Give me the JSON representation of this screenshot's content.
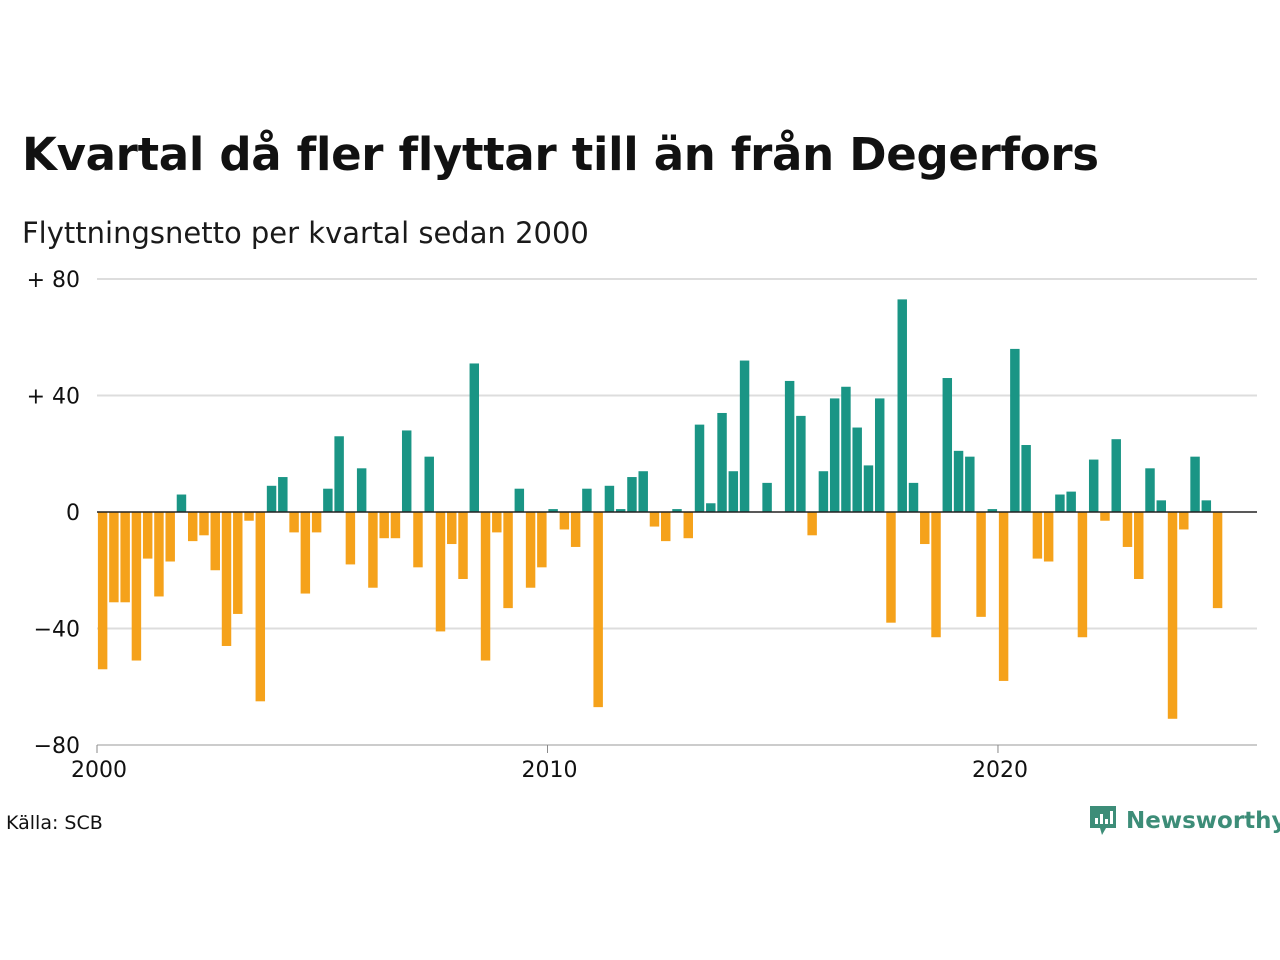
{
  "title": "Kvartal då fler flyttar till än från Degerfors",
  "subtitle": "Flyttningsnetto per kvartal sedan 2000",
  "source": "Källa: SCB",
  "brand": "Newsworthy",
  "colors": {
    "positive": "#1a9585",
    "negative": "#f5a21b",
    "grid": "#dddddd",
    "zero": "#222222",
    "brand": "#3d8d78"
  },
  "chart_data": {
    "type": "bar",
    "title": "Kvartal då fler flyttar till än från Degerfors",
    "subtitle": "Flyttningsnetto per kvartal sedan 2000",
    "x_start": 2000,
    "periods_per_year": 4,
    "xlim": [
      2000,
      2025.75
    ],
    "xticks": [
      {
        "value": 2000,
        "label": "2000"
      },
      {
        "value": 2010,
        "label": "2010"
      },
      {
        "value": 2020,
        "label": "2020"
      }
    ],
    "ylim": [
      -80,
      80
    ],
    "yticks": [
      {
        "value": 80,
        "label": "+ 80"
      },
      {
        "value": 40,
        "label": "+ 40"
      },
      {
        "value": 0,
        "label": "0"
      },
      {
        "value": -40,
        "label": "−40"
      },
      {
        "value": -80,
        "label": "−80"
      }
    ],
    "grid": true,
    "values": [
      -54,
      -31,
      -31,
      -51,
      -16,
      -29,
      -17,
      6,
      -10,
      -8,
      -20,
      -46,
      -35,
      -3,
      -65,
      9,
      12,
      -7,
      -28,
      -7,
      8,
      26,
      -18,
      15,
      -26,
      -9,
      -9,
      28,
      -19,
      19,
      -41,
      -11,
      -23,
      51,
      -51,
      -7,
      -33,
      8,
      -26,
      -19,
      1,
      -6,
      -12,
      8,
      -67,
      9,
      1,
      12,
      14,
      -5,
      -10,
      1,
      -9,
      30,
      3,
      34,
      14,
      52,
      0,
      10,
      0,
      45,
      33,
      -8,
      14,
      39,
      43,
      29,
      16,
      39,
      -38,
      73,
      10,
      -11,
      -43,
      46,
      21,
      19,
      -36,
      1,
      -58,
      56,
      23,
      -16,
      -17,
      6,
      7,
      -43,
      18,
      -3,
      25,
      -12,
      -23,
      15,
      4,
      -71,
      -6,
      19,
      4,
      -33
    ]
  }
}
